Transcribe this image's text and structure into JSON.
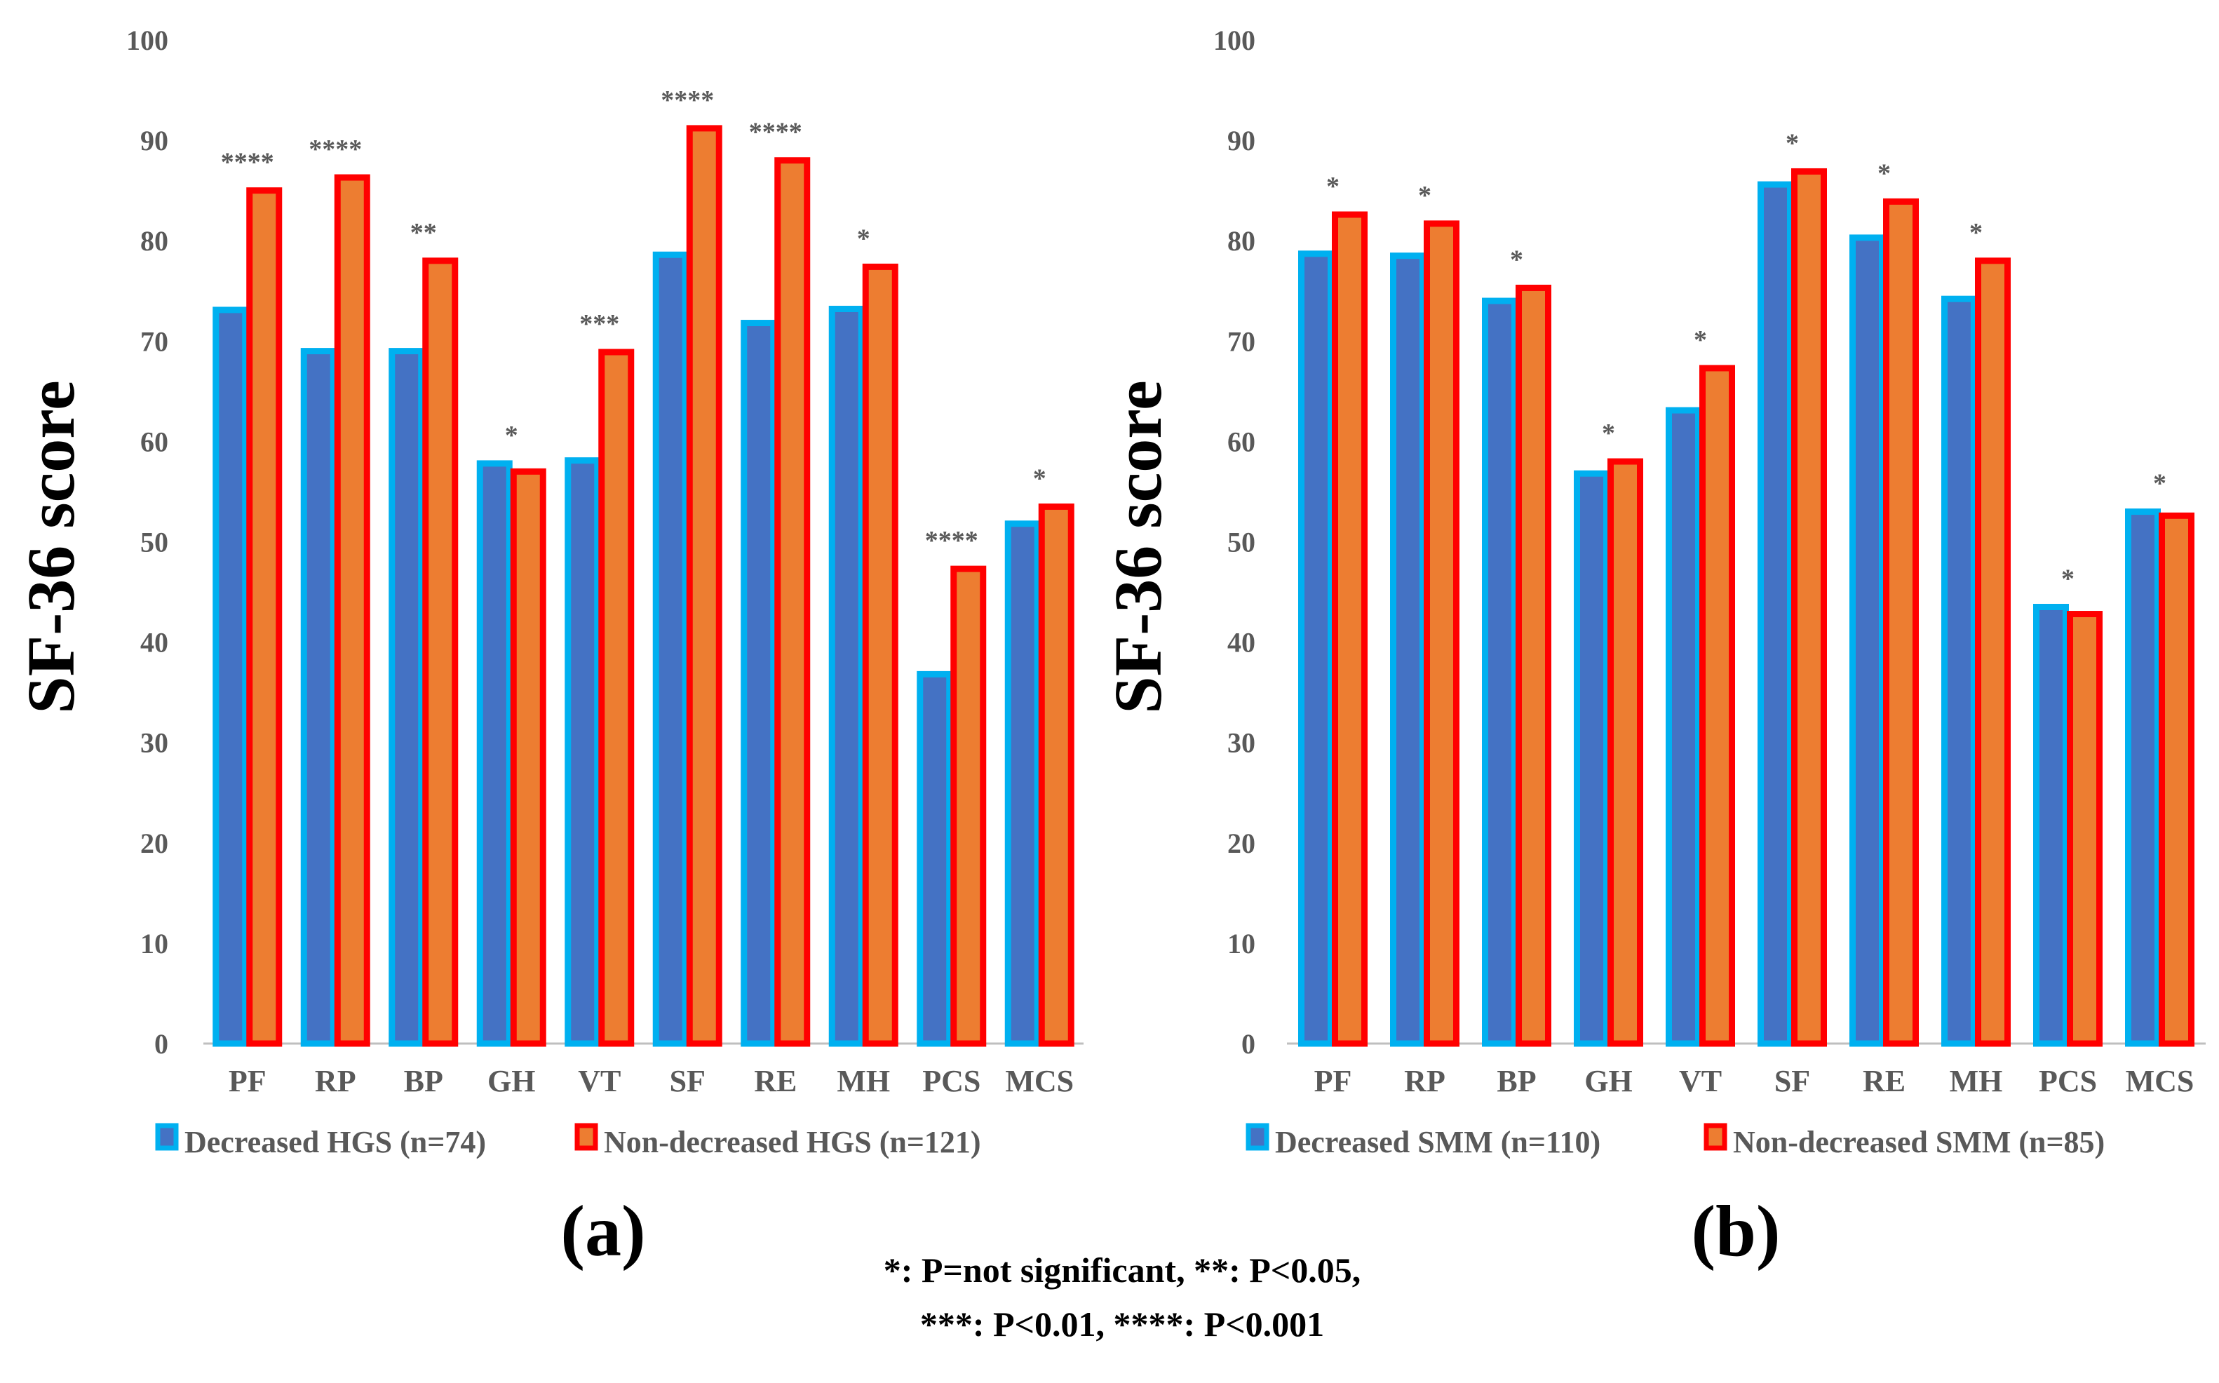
{
  "colors": {
    "decreased_edge": "#00B0F0",
    "decreased_fill": "#4472C4",
    "nondecreased_edge": "#FF0000",
    "nondecreased_fill": "#ED7D31",
    "axis": "#BFBFBF",
    "text": "#595959"
  },
  "chart_data": [
    {
      "type": "bar",
      "panel_label": "(a)",
      "ylabel": "SF-36 score",
      "xlabel": "",
      "ylim": [
        0,
        100
      ],
      "yticks": [
        "0",
        "10",
        "20",
        "30",
        "40",
        "50",
        "60",
        "70",
        "80",
        "90",
        "100"
      ],
      "categories": [
        "PF",
        "RP",
        "BP",
        "GH",
        "VT",
        "SF",
        "RE",
        "MH",
        "PCS",
        "MCS"
      ],
      "significance": [
        "****",
        "****",
        "**",
        "*",
        "***",
        "****",
        "****",
        "*",
        "****",
        "*"
      ],
      "series": [
        {
          "name": "Decreased HGS (n=74)",
          "values": [
            73.1,
            69.0,
            69.0,
            57.8,
            58.1,
            78.6,
            71.8,
            73.2,
            36.8,
            51.8
          ]
        },
        {
          "name": "Non-decreased HGS (n=121)",
          "values": [
            85.0,
            86.3,
            78.0,
            57.0,
            68.9,
            91.2,
            88.0,
            77.4,
            47.3,
            53.5
          ]
        }
      ],
      "legend_position": "bottom"
    },
    {
      "type": "bar",
      "panel_label": "(b)",
      "ylabel": "SF-36 score",
      "xlabel": "",
      "ylim": [
        0,
        100
      ],
      "yticks": [
        "0",
        "10",
        "20",
        "30",
        "40",
        "50",
        "60",
        "70",
        "80",
        "90",
        "100"
      ],
      "categories": [
        "PF",
        "RP",
        "BP",
        "GH",
        "VT",
        "SF",
        "RE",
        "MH",
        "PCS",
        "MCS"
      ],
      "significance": [
        "*",
        "*",
        "*",
        "*",
        "*",
        "*",
        "*",
        "*",
        "*",
        "*"
      ],
      "series": [
        {
          "name": "Decreased SMM (n=110)",
          "values": [
            78.7,
            78.5,
            74.0,
            56.8,
            63.1,
            85.6,
            80.3,
            74.2,
            43.5,
            53.0
          ]
        },
        {
          "name": "Non-decreased SMM (n=85)",
          "values": [
            82.6,
            81.7,
            75.3,
            58.0,
            67.3,
            86.9,
            83.9,
            78.0,
            42.8,
            52.6
          ]
        }
      ],
      "legend_position": "bottom"
    }
  ],
  "footnote": {
    "line1": "*: P=not significant, **: P<0.05,",
    "line2": "***: P<0.01, ****: P<0.001"
  }
}
